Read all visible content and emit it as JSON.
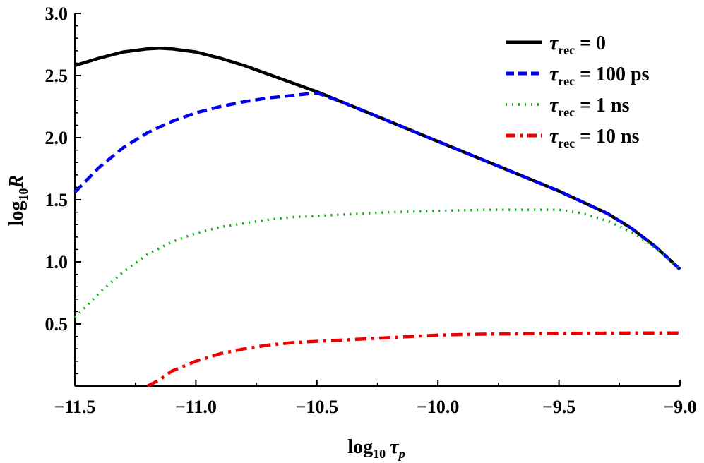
{
  "chart_data": {
    "type": "line",
    "x_label": {
      "main": "log",
      "sub": "10",
      "var": "τ",
      "var_sub": "p"
    },
    "y_label": {
      "main": "log",
      "sub": "10",
      "var": "R"
    },
    "xlim": [
      -11.5,
      -9.0
    ],
    "ylim": [
      0.0,
      3.0
    ],
    "x_ticks": [
      -11.5,
      -11.0,
      -10.5,
      -10.0,
      -9.5,
      -9.0
    ],
    "x_tick_labels": [
      "−11.5",
      "−11.0",
      "−10.5",
      "−10.0",
      "−9.5",
      "−9.0"
    ],
    "y_ticks": [
      0.5,
      1.0,
      1.5,
      2.0,
      2.5,
      3.0
    ],
    "y_tick_labels": [
      "0.5",
      "1.0",
      "1.5",
      "2.0",
      "2.5",
      "3.0"
    ],
    "grid": false,
    "legend_position": "top-right",
    "series": [
      {
        "name": "τrec = 0",
        "label_main": "τ",
        "label_sub": "rec",
        "label_tail": " = 0",
        "color": "#000000",
        "style": "solid",
        "x": [
          -11.5,
          -11.4,
          -11.3,
          -11.2,
          -11.15,
          -11.1,
          -11.0,
          -10.9,
          -10.8,
          -10.7,
          -10.6,
          -10.5,
          -10.4,
          -10.3,
          -10.2,
          -10.1,
          -10.0,
          -9.9,
          -9.8,
          -9.7,
          -9.6,
          -9.5,
          -9.4,
          -9.3,
          -9.2,
          -9.1,
          -9.0
        ],
        "y": [
          2.58,
          2.64,
          2.69,
          2.715,
          2.72,
          2.715,
          2.69,
          2.64,
          2.58,
          2.51,
          2.44,
          2.37,
          2.29,
          2.21,
          2.13,
          2.05,
          1.97,
          1.89,
          1.81,
          1.73,
          1.65,
          1.57,
          1.48,
          1.39,
          1.27,
          1.12,
          0.94
        ]
      },
      {
        "name": "τrec = 100 ps",
        "label_main": "τ",
        "label_sub": "rec",
        "label_tail": " = 100 ps",
        "color": "#0000ee",
        "style": "dashed",
        "x": [
          -11.5,
          -11.4,
          -11.3,
          -11.2,
          -11.1,
          -11.0,
          -10.9,
          -10.8,
          -10.7,
          -10.6,
          -10.5,
          -10.4,
          -10.3,
          -10.2,
          -10.1,
          -10.0,
          -9.9,
          -9.8,
          -9.7,
          -9.6,
          -9.5,
          -9.4,
          -9.3,
          -9.2,
          -9.1,
          -9.0
        ],
        "y": [
          1.56,
          1.76,
          1.92,
          2.04,
          2.13,
          2.2,
          2.25,
          2.29,
          2.32,
          2.34,
          2.36,
          2.29,
          2.21,
          2.13,
          2.05,
          1.97,
          1.89,
          1.81,
          1.73,
          1.65,
          1.57,
          1.48,
          1.39,
          1.27,
          1.12,
          0.94
        ]
      },
      {
        "name": "τrec = 1 ns",
        "label_main": "τ",
        "label_sub": "rec",
        "label_tail": " = 1 ns",
        "color": "#00aa00",
        "style": "dotted",
        "x": [
          -11.5,
          -11.4,
          -11.3,
          -11.2,
          -11.1,
          -11.0,
          -10.9,
          -10.8,
          -10.7,
          -10.6,
          -10.5,
          -10.4,
          -10.3,
          -10.2,
          -10.1,
          -10.0,
          -9.9,
          -9.8,
          -9.7,
          -9.6,
          -9.5,
          -9.4,
          -9.3,
          -9.2,
          -9.1,
          -9.0
        ],
        "y": [
          0.55,
          0.75,
          0.92,
          1.06,
          1.16,
          1.23,
          1.28,
          1.31,
          1.34,
          1.36,
          1.37,
          1.38,
          1.39,
          1.4,
          1.405,
          1.41,
          1.415,
          1.42,
          1.42,
          1.42,
          1.42,
          1.39,
          1.33,
          1.24,
          1.11,
          0.94
        ]
      },
      {
        "name": "τrec = 10 ns",
        "label_main": "τ",
        "label_sub": "rec",
        "label_tail": " = 10 ns",
        "color": "#ee0000",
        "style": "dashdot",
        "x": [
          -11.2,
          -11.15,
          -11.1,
          -11.0,
          -10.9,
          -10.8,
          -10.7,
          -10.6,
          -10.5,
          -10.4,
          -10.3,
          -10.2,
          -10.1,
          -10.0,
          -9.9,
          -9.8,
          -9.7,
          -9.6,
          -9.5,
          -9.4,
          -9.3,
          -9.2,
          -9.1,
          -9.0
        ],
        "y": [
          0.0,
          0.05,
          0.12,
          0.2,
          0.26,
          0.3,
          0.33,
          0.35,
          0.36,
          0.37,
          0.38,
          0.39,
          0.4,
          0.41,
          0.415,
          0.418,
          0.42,
          0.422,
          0.424,
          0.425,
          0.426,
          0.427,
          0.428,
          0.428
        ]
      }
    ]
  }
}
